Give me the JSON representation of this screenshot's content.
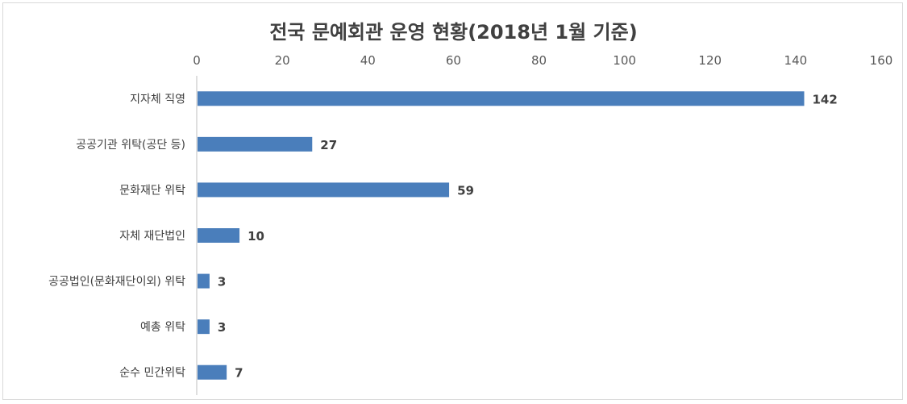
{
  "chart_data": {
    "type": "bar",
    "orientation": "horizontal",
    "title": "전국 문예회관 운영 현황(2018년 1월 기준)",
    "categories": [
      "지자체 직영",
      "공공기관 위탁(공단 등)",
      "문화재단 위탁",
      "자체 재단법인",
      "공공법인(문화재단이외) 위탁",
      "예총 위탁",
      "순수 민간위탁"
    ],
    "values": [
      142,
      27,
      59,
      10,
      3,
      3,
      7
    ],
    "xlim": [
      0,
      160
    ],
    "xticks": [
      "0",
      "20",
      "40",
      "60",
      "80",
      "100",
      "120",
      "140",
      "160"
    ],
    "xaxis_position": "top",
    "grid": false,
    "bar_color": "#4a7ebb",
    "legend": "none"
  }
}
